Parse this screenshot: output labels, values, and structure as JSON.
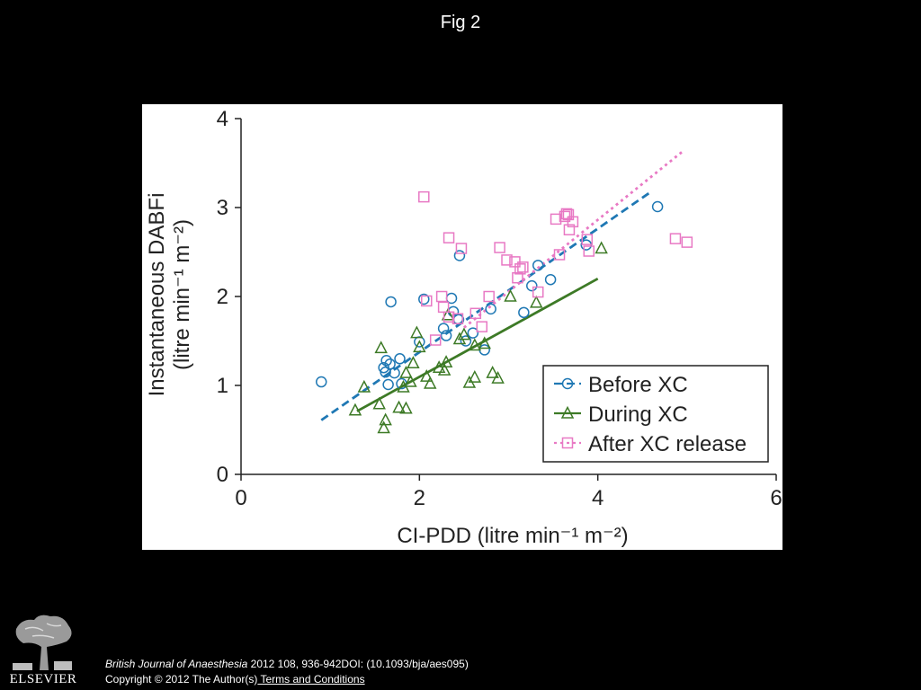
{
  "slide": {
    "title": "Fig 2"
  },
  "citation": {
    "journal": "British Journal of Anaesthesia",
    "rest": " 2012 108, 936-942DOI: (10.1093/bja/aes095)",
    "copyright": "Copyright © 2012 The Author(s)",
    "terms_link": " Terms and Conditions"
  },
  "logo": {
    "text": "ELSEVIER",
    "icon": "tree-logo-icon"
  },
  "chart_data": {
    "type": "scatter",
    "title": "",
    "xlabel": "CI-PDD (litre min⁻¹ m⁻²)",
    "ylabel_line1": "Instantaneous DABFi",
    "ylabel_line2": "(litre min⁻¹ m⁻²)",
    "xlim": [
      0,
      6
    ],
    "ylim": [
      0,
      4
    ],
    "xticks": [
      "0",
      "2",
      "4",
      "6"
    ],
    "yticks": [
      "0",
      "1",
      "2",
      "3",
      "4"
    ],
    "grid": false,
    "legend_position": "bottom-right",
    "series": [
      {
        "name": "Before XC",
        "marker": "circle",
        "color": "#1f78b4",
        "line_style": "dashed",
        "fit_line": {
          "x": [
            0.9,
            4.6
          ],
          "y": [
            0.61,
            3.18
          ]
        },
        "x": [
          0.9,
          1.6,
          1.62,
          1.63,
          1.67,
          1.65,
          1.68,
          1.72,
          1.78,
          1.8,
          2.0,
          2.05,
          2.27,
          2.3,
          2.36,
          2.38,
          2.43,
          2.44,
          2.45,
          2.52,
          2.6,
          2.73,
          2.8,
          3.17,
          3.26,
          3.33,
          3.47,
          3.87,
          4.67
        ],
        "y": [
          1.04,
          1.2,
          1.15,
          1.28,
          1.24,
          1.01,
          1.94,
          1.14,
          1.3,
          1.02,
          1.49,
          1.97,
          1.64,
          1.56,
          1.98,
          1.83,
          1.75,
          1.74,
          2.46,
          1.5,
          1.59,
          1.4,
          1.86,
          1.82,
          2.12,
          2.35,
          2.19,
          2.58,
          3.01
        ]
      },
      {
        "name": "During XC",
        "marker": "triangle",
        "color": "#3d7a26",
        "line_style": "solid",
        "fit_line": {
          "x": [
            1.3,
            4.0
          ],
          "y": [
            0.71,
            2.2
          ]
        },
        "x": [
          1.28,
          1.38,
          1.55,
          1.57,
          1.6,
          1.62,
          1.77,
          1.82,
          1.85,
          1.85,
          1.9,
          1.93,
          1.97,
          2.0,
          2.08,
          2.12,
          2.22,
          2.28,
          2.3,
          2.32,
          2.45,
          2.5,
          2.56,
          2.62,
          2.62,
          2.73,
          2.82,
          2.88,
          3.02,
          3.31,
          4.04
        ],
        "y": [
          0.72,
          0.98,
          0.79,
          1.42,
          0.52,
          0.61,
          0.75,
          0.98,
          1.14,
          0.74,
          1.04,
          1.25,
          1.59,
          1.43,
          1.1,
          1.02,
          1.2,
          1.17,
          1.26,
          1.79,
          1.52,
          1.57,
          1.03,
          1.45,
          1.09,
          1.47,
          1.14,
          1.08,
          2.0,
          1.93,
          2.54
        ]
      },
      {
        "name": "After XC release",
        "marker": "square",
        "color": "#e879c4",
        "line_style": "dotted",
        "fit_line": {
          "x": [
            2.5,
            4.95
          ],
          "y": [
            1.65,
            3.63
          ]
        },
        "x": [
          2.05,
          2.08,
          2.18,
          2.25,
          2.27,
          2.33,
          2.33,
          2.43,
          2.47,
          2.63,
          2.7,
          2.78,
          2.9,
          2.98,
          3.07,
          3.1,
          3.13,
          3.16,
          3.33,
          3.53,
          3.57,
          3.63,
          3.65,
          3.67,
          3.68,
          3.72,
          3.88,
          3.9,
          4.87,
          5.0
        ],
        "y": [
          3.12,
          1.95,
          1.51,
          2.0,
          1.88,
          2.66,
          1.77,
          1.75,
          2.54,
          1.81,
          1.66,
          2.0,
          2.55,
          2.41,
          2.39,
          2.21,
          2.31,
          2.33,
          2.05,
          2.87,
          2.47,
          2.9,
          2.93,
          2.92,
          2.75,
          2.84,
          2.64,
          2.51,
          2.65,
          2.61
        ]
      }
    ]
  }
}
